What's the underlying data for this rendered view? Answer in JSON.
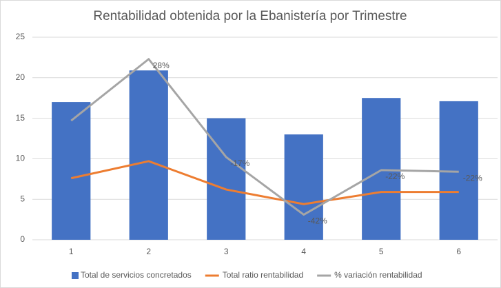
{
  "chart_data": {
    "type": "bar-line",
    "title": "Rentabilidad obtenida por la Ebanistería por Trimestre",
    "categories": [
      "1",
      "2",
      "3",
      "4",
      "5",
      "6"
    ],
    "series": [
      {
        "name": "Total de servicios concretados",
        "type": "bar",
        "color": "#4472c4",
        "values": [
          17,
          20.9,
          15,
          13,
          17.5,
          17.1
        ]
      },
      {
        "name": "Total ratio rentabilidad",
        "type": "line",
        "color": "#ed7d31",
        "values": [
          7.6,
          9.7,
          6.2,
          4.4,
          5.9,
          5.9
        ]
      },
      {
        "name": "% variación rentabilidad",
        "type": "line",
        "color": "#a5a5a5",
        "values": [
          14.7,
          22.3,
          10.2,
          3.1,
          8.6,
          8.4
        ],
        "point_labels": [
          null,
          "28%",
          "-17%",
          "-42%",
          "-22%",
          "-22%"
        ]
      }
    ],
    "ylim": [
      0,
      25
    ],
    "yticks": [
      0,
      5,
      10,
      15,
      20,
      25
    ],
    "grid": true,
    "legend": "bottom"
  }
}
